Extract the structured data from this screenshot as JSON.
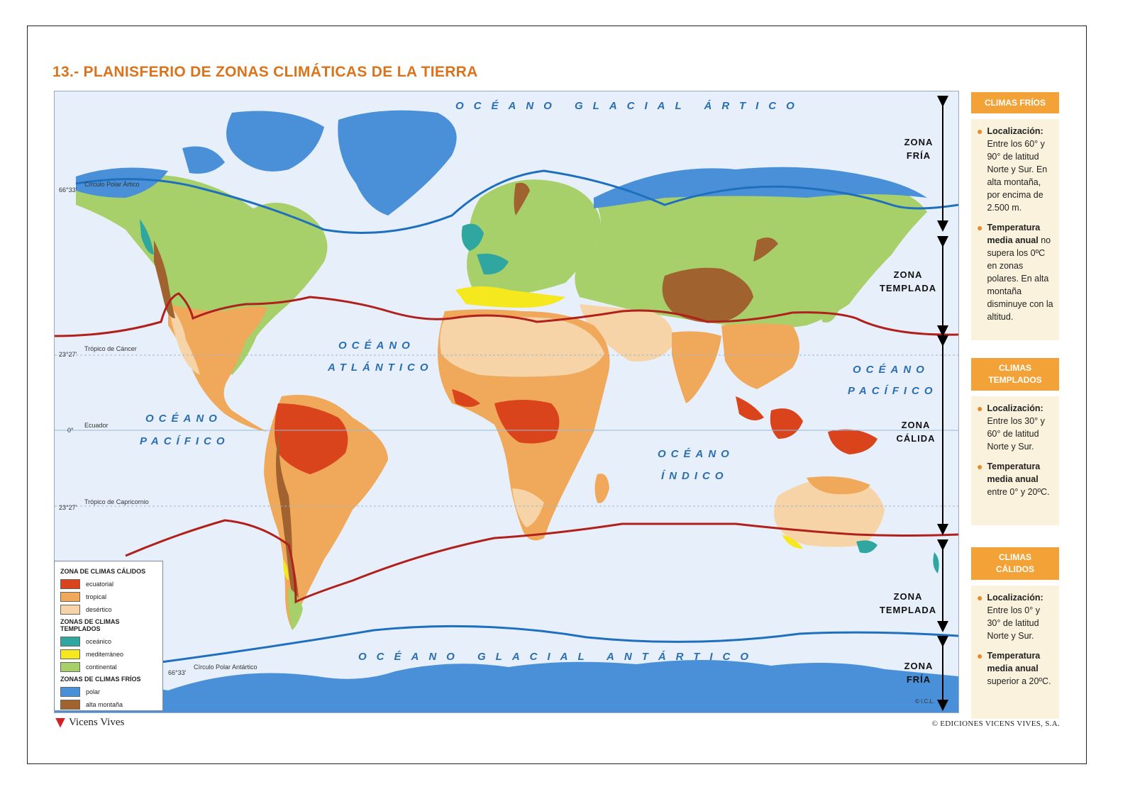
{
  "title": "13.- PLANISFERIO DE ZONAS CLIMÁTICAS DE LA TIERRA",
  "oceans": {
    "arctic": "OCÉANO GLACIAL ÁRTICO",
    "atlantic_1": "OCÉANO",
    "atlantic_2": "ATLÁNTICO",
    "pacific_w_1": "OCÉANO",
    "pacific_w_2": "PACÍFICO",
    "pacific_e_1": "OCÉANO",
    "pacific_e_2": "PACÍFICO",
    "indian_1": "OCÉANO",
    "indian_2": "ÍNDICO",
    "antarctic": "OCÉANO GLACIAL ANTÁRTICO"
  },
  "lat_lines": {
    "arctic_deg": "66°33'",
    "arctic_name": "Círculo Polar Ártico",
    "cancer_deg": "23°27'",
    "cancer_name": "Trópico de Cáncer",
    "equator_deg": "0°",
    "equator_name": "Ecuador",
    "capricorn_deg": "23°27'",
    "capricorn_name": "Trópico de Capricornio",
    "antarctic_deg": "66°33'",
    "antarctic_name": "Círculo Polar Antártico"
  },
  "zones": {
    "fria_n_1": "ZONA",
    "fria_n_2": "FRÍA",
    "templada_n_1": "ZONA",
    "templada_n_2": "TEMPLADA",
    "calida_1": "ZONA",
    "calida_2": "CÁLIDA",
    "templada_s_1": "ZONA",
    "templada_s_2": "TEMPLADA",
    "fria_s_1": "ZONA",
    "fria_s_2": "FRÍA"
  },
  "legend": {
    "warm_title": "ZONA DE CLIMAS CÁLIDOS",
    "ecuatorial": "ecuatorial",
    "tropical": "tropical",
    "desertico": "desértico",
    "temperate_title": "ZONAS DE CLIMAS TEMPLADOS",
    "oceanico": "oceánico",
    "mediterraneo": "mediterráneo",
    "continental": "continental",
    "cold_title": "ZONAS DE CLIMAS FRÍOS",
    "polar": "polar",
    "alta_montana": "alta montaña"
  },
  "colors": {
    "ecuatorial": "#d9441c",
    "tropical": "#f0a85a",
    "desertico": "#f7d3a8",
    "oceanico": "#2fa6a0",
    "mediterraneo": "#f6e81e",
    "continental": "#a8d06a",
    "polar": "#4a90d9",
    "alta_montana": "#a0622e",
    "ocean": "#e7f0fa",
    "zone_red": "#b0201c",
    "zone_blue": "#1f6fbf",
    "accent": "#f2a236"
  },
  "panels": {
    "cold": {
      "head": "CLIMAS FRÍOS",
      "loc_label": "Localización:",
      "loc_text": "Entre los 60° y 90° de latitud Norte y Sur. En alta montaña, por encima de 2.500 m.",
      "temp_label": "Temperatura media anual",
      "temp_text": "no supera los 0ºC en zonas polares. En alta montaña disminuye con la altitud."
    },
    "temperate": {
      "head": "CLIMAS TEMPLADOS",
      "loc_label": "Localización:",
      "loc_text": "Entre los 30° y 60° de latitud Norte y Sur.",
      "temp_label": "Temperatura media anual",
      "temp_text": "entre 0° y 20ºC."
    },
    "warm": {
      "head": "CLIMAS CÁLIDOS",
      "loc_label": "Localización:",
      "loc_text": "Entre los 0° y 30° de latitud Norte y Sur.",
      "temp_label": "Temperatura media anual",
      "temp_text": "superior a 20ºC."
    }
  },
  "footer": {
    "brand": "Vicens Vives",
    "copyright": "© EDICIONES VICENS VIVES, S.A.",
    "icl": "© I.C.L."
  }
}
